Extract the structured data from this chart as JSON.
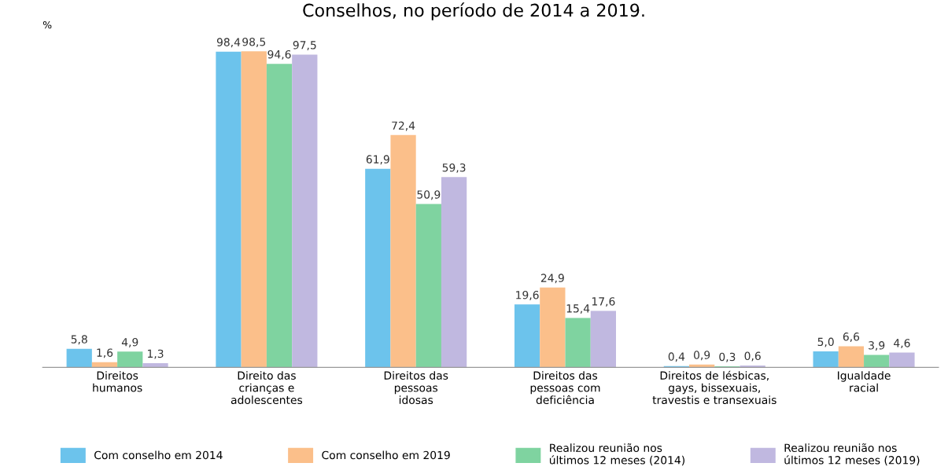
{
  "chart_data": {
    "type": "bar",
    "title": "Conselhos, no período de 2014 a 2019.",
    "ylabel": "%",
    "categories": [
      "Direitos\nhumanos",
      "Direito das\ncrianças e\nadolescentes",
      "Direitos das\npessoas\nidosas",
      "Direitos das\npessoas com\ndeficiência",
      "Direitos de lésbicas,\ngays, bissexuais,\ntravestis e transexuais",
      "Igualdade\nracial"
    ],
    "series": [
      {
        "name": "Com conselho em 2014",
        "color": "#6cc3ec",
        "values": [
          5.8,
          98.4,
          61.9,
          19.6,
          0.4,
          5.0
        ],
        "value_labels": [
          "5,8",
          "98,4",
          "61,9",
          "19,6",
          "0,4",
          "5,0"
        ]
      },
      {
        "name": "Com conselho em 2019",
        "color": "#fbbf8a",
        "values": [
          1.6,
          98.5,
          72.4,
          24.9,
          0.9,
          6.6
        ],
        "value_labels": [
          "1,6",
          "98,5",
          "72,4",
          "24,9",
          "0,9",
          "6,6"
        ]
      },
      {
        "name": "Realizou reunião nos\núltimos 12 meses (2014)",
        "color": "#7fd3a0",
        "values": [
          4.9,
          94.6,
          50.9,
          15.4,
          0.3,
          3.9
        ],
        "value_labels": [
          "4,9",
          "94,6",
          "50,9",
          "15,4",
          "0,3",
          "3,9"
        ]
      },
      {
        "name": "Realizou reunião nos\núltimos 12 meses (2019)",
        "color": "#c0b8e0",
        "values": [
          1.3,
          97.5,
          59.3,
          17.6,
          0.6,
          4.6
        ],
        "value_labels": [
          "1,3",
          "97,5",
          "59,3",
          "17,6",
          "0,6",
          "4,6"
        ]
      }
    ],
    "legend": "bottom",
    "tick_labels": "x",
    "grid": false
  }
}
